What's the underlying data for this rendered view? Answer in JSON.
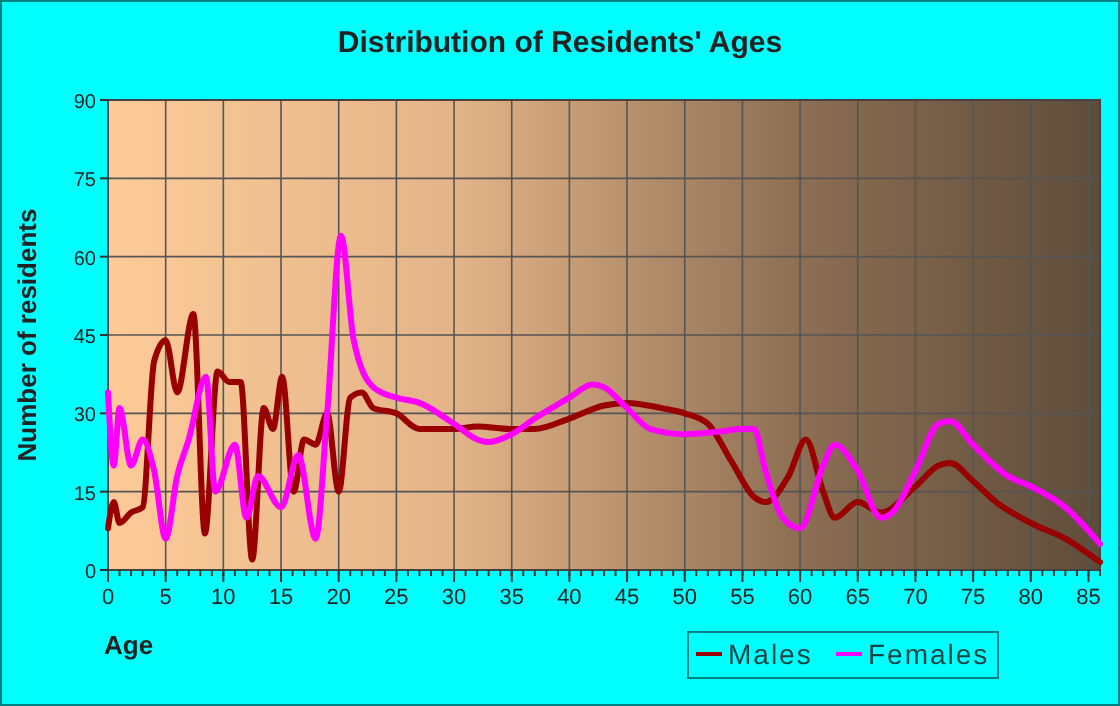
{
  "chart_data": {
    "type": "line",
    "title": "Distribution of Residents' Ages",
    "xlabel": "Age",
    "ylabel": "Number of residents",
    "xlim": [
      0,
      86
    ],
    "xticks": [
      0,
      5,
      10,
      15,
      20,
      25,
      30,
      35,
      40,
      45,
      50,
      55,
      60,
      65,
      70,
      75,
      80,
      85
    ],
    "ylim": [
      0,
      90
    ],
    "yticks": [
      0,
      15,
      30,
      45,
      60,
      75,
      90
    ],
    "grid": true,
    "legend": "bottom",
    "series": [
      {
        "name": "Males",
        "color": "#990000",
        "x": [
          0,
          0.5,
          1,
          2,
          3,
          4,
          5,
          6,
          7.4,
          8.4,
          9.5,
          10.5,
          11.5,
          12.5,
          13.5,
          14.3,
          15.1,
          16.1,
          17,
          18,
          19,
          20,
          21,
          22,
          23,
          25,
          27,
          30,
          32,
          35,
          37,
          40,
          43,
          45,
          48,
          50,
          52,
          54,
          56,
          57,
          59,
          60.5,
          62,
          63,
          65,
          67,
          70,
          72,
          73,
          75,
          77,
          80,
          83,
          86
        ],
        "values": [
          8,
          13,
          9,
          11,
          12,
          40,
          44,
          34,
          49,
          7,
          38,
          36,
          36,
          2,
          31,
          27,
          37,
          15,
          25,
          24,
          30,
          15,
          33,
          34,
          31,
          30,
          27,
          27,
          27.5,
          27,
          27,
          29,
          31.5,
          32,
          31,
          30,
          28,
          21,
          14,
          13,
          18,
          25,
          15,
          10,
          13,
          11,
          16,
          20,
          20.5,
          17,
          13,
          9,
          6,
          1.5
        ]
      },
      {
        "name": "Females",
        "color": "#ff00ff",
        "x": [
          0,
          0.5,
          1,
          2,
          3,
          4,
          5,
          6,
          7,
          8.5,
          9.3,
          11,
          12,
          13,
          15,
          16.5,
          18,
          19,
          20.2,
          21.3,
          23,
          25,
          27,
          30,
          32,
          33,
          35,
          37,
          40,
          42,
          43,
          45,
          47,
          50,
          53,
          55,
          56,
          57,
          58.5,
          60,
          62,
          63,
          65,
          67,
          68,
          70,
          72,
          73,
          75,
          78,
          80,
          83,
          86
        ],
        "values": [
          34,
          20,
          31,
          20,
          25,
          19,
          6,
          18,
          25,
          37,
          15,
          24,
          10,
          18,
          12,
          22,
          6,
          30,
          64,
          44,
          35,
          33,
          32,
          28,
          25,
          24.5,
          26,
          29,
          33,
          35.5,
          35,
          31,
          27,
          26,
          26.5,
          27,
          27,
          19,
          10,
          8,
          20,
          24,
          19,
          10,
          11,
          19,
          28,
          28.5,
          24,
          18,
          16,
          12,
          5
        ]
      }
    ]
  }
}
